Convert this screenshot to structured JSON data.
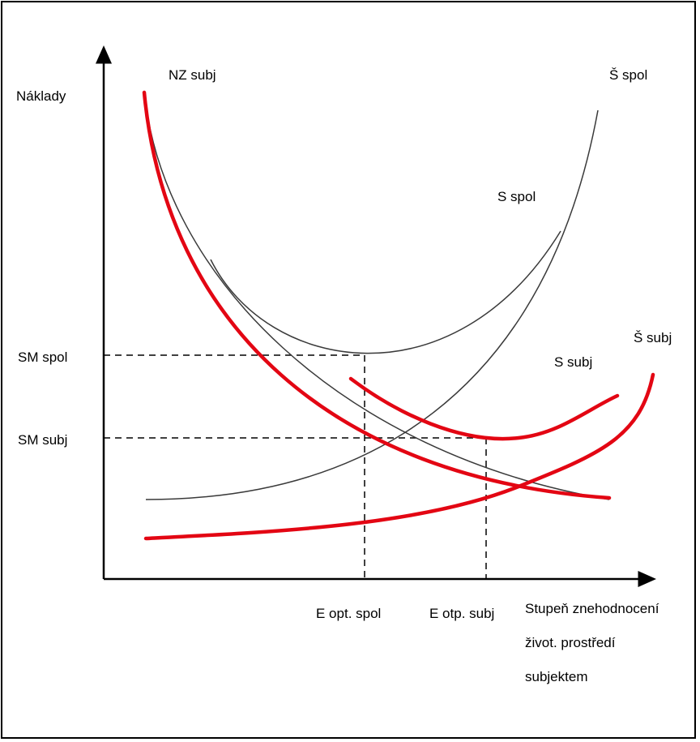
{
  "diagram": {
    "y_axis_label": "Náklady",
    "y_ticks": {
      "sm_spol": "SM spol",
      "sm_subj": "SM subj"
    },
    "x_ticks": {
      "e_opt_spol": "E opt. spol",
      "e_otp_subj": "E otp. subj"
    },
    "x_axis_label_lines": [
      "Stupeň znehodnocení",
      "život. prostředí",
      "subjektem"
    ],
    "curve_labels": {
      "nz_subj": "NZ subj",
      "s_spol": "S spol",
      "sh_spol": "Š spol",
      "s_subj": "S subj",
      "sh_subj": "Š subj"
    },
    "colors": {
      "society_curves": "#3a3a3a",
      "subject_curves": "#e30613",
      "axes": "#000000"
    }
  }
}
